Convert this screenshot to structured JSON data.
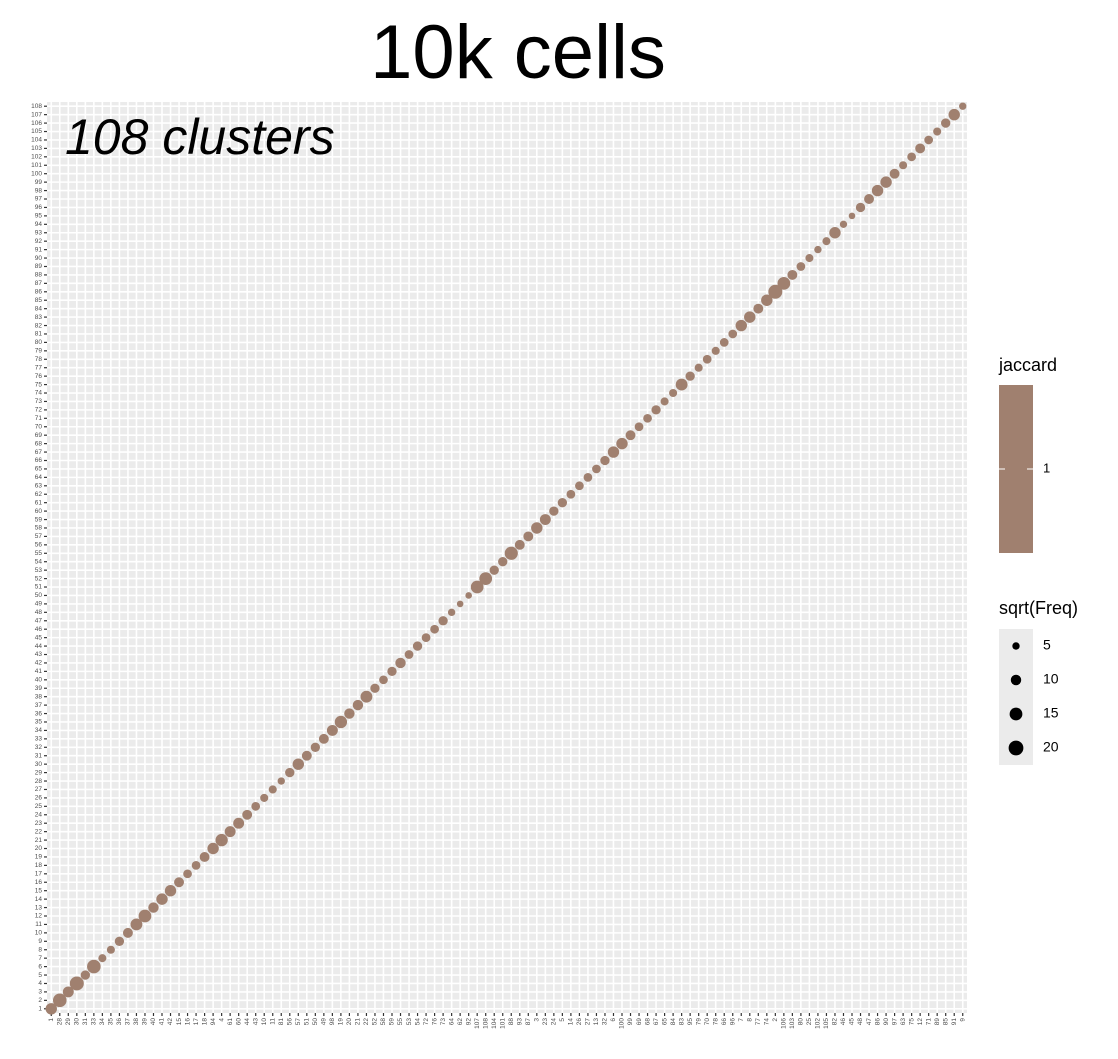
{
  "chart_data": {
    "type": "dot",
    "title": "10k cells",
    "annotation": "108 clusters",
    "color": "#a0806f",
    "grid": true,
    "x_categories": [
      "1",
      "28",
      "29",
      "30",
      "31",
      "33",
      "34",
      "35",
      "36",
      "37",
      "38",
      "39",
      "40",
      "41",
      "42",
      "15",
      "16",
      "17",
      "18",
      "94",
      "4",
      "61",
      "60",
      "44",
      "43",
      "10",
      "11",
      "81",
      "56",
      "57",
      "51",
      "50",
      "49",
      "98",
      "19",
      "20",
      "21",
      "22",
      "52",
      "58",
      "59",
      "55",
      "53",
      "54",
      "72",
      "76",
      "73",
      "64",
      "62",
      "92",
      "107",
      "108",
      "104",
      "101",
      "88",
      "93",
      "87",
      "3",
      "23",
      "24",
      "5",
      "14",
      "26",
      "27",
      "13",
      "32",
      "6",
      "100",
      "99",
      "69",
      "68",
      "67",
      "65",
      "84",
      "83",
      "95",
      "79",
      "70",
      "78",
      "66",
      "96",
      "7",
      "8",
      "77",
      "74",
      "2",
      "106",
      "103",
      "80",
      "25",
      "102",
      "105",
      "82",
      "46",
      "45",
      "48",
      "47",
      "86",
      "90",
      "97",
      "63",
      "75",
      "12",
      "71",
      "89",
      "85",
      "91",
      "9"
    ],
    "y_categories": [
      "1",
      "2",
      "3",
      "4",
      "5",
      "6",
      "7",
      "8",
      "9",
      "10",
      "11",
      "12",
      "13",
      "14",
      "15",
      "16",
      "17",
      "18",
      "19",
      "20",
      "21",
      "22",
      "23",
      "24",
      "25",
      "26",
      "27",
      "28",
      "29",
      "30",
      "31",
      "32",
      "33",
      "34",
      "35",
      "36",
      "37",
      "38",
      "39",
      "40",
      "41",
      "42",
      "43",
      "44",
      "45",
      "46",
      "47",
      "48",
      "49",
      "50",
      "51",
      "52",
      "53",
      "54",
      "55",
      "56",
      "57",
      "58",
      "59",
      "60",
      "61",
      "62",
      "63",
      "64",
      "65",
      "66",
      "67",
      "68",
      "69",
      "70",
      "71",
      "72",
      "73",
      "74",
      "75",
      "76",
      "77",
      "78",
      "79",
      "80",
      "81",
      "82",
      "83",
      "84",
      "85",
      "86",
      "87",
      "88",
      "89",
      "90",
      "91",
      "92",
      "93",
      "94",
      "95",
      "96",
      "97",
      "98",
      "99",
      "100",
      "101",
      "102",
      "103",
      "104",
      "105",
      "106",
      "107",
      "108"
    ],
    "sizes": [
      12,
      17,
      11,
      18,
      8,
      17,
      6,
      6,
      8,
      9,
      13,
      15,
      10,
      12,
      12,
      9,
      7,
      7,
      9,
      12,
      14,
      11,
      11,
      9,
      7,
      6,
      6,
      5,
      8,
      12,
      9,
      8,
      9,
      11,
      14,
      10,
      10,
      13,
      8,
      7,
      8,
      10,
      7,
      8,
      7,
      7,
      8,
      5,
      4,
      4,
      15,
      15,
      8,
      8,
      16,
      9,
      9,
      12,
      11,
      8,
      8,
      7,
      7,
      7,
      7,
      8,
      12,
      12,
      9,
      7,
      7,
      8,
      6,
      6,
      13,
      8,
      6,
      7,
      6,
      7,
      7,
      12,
      12,
      9,
      12,
      18,
      15,
      9,
      7,
      6,
      5,
      6,
      12,
      5,
      4,
      8,
      9,
      12,
      12,
      9,
      6,
      7,
      9,
      7,
      6,
      8,
      12,
      5
    ],
    "color_legend_title": "jaccard",
    "color_ticks": [
      1
    ],
    "size_legend_title": "sqrt(Freq)",
    "size_legend": [
      5,
      10,
      15,
      20
    ]
  }
}
